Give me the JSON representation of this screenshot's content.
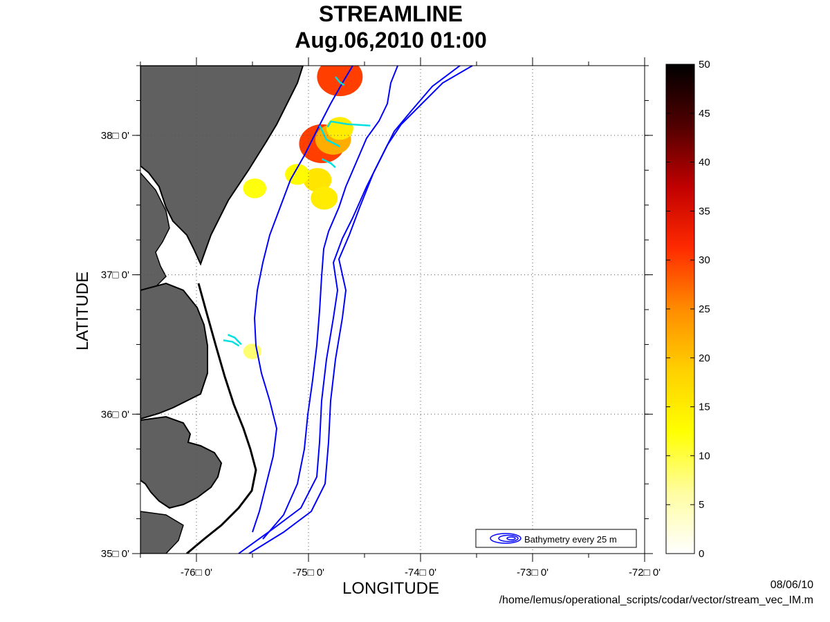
{
  "chart_data": {
    "type": "heatmap",
    "title": "STREAMLINE",
    "subtitle": "Aug.06,2010 01:00",
    "xlabel": "LONGITUDE",
    "ylabel": "LATITUDE",
    "xlim": [
      -76.5,
      -72.0
    ],
    "ylim": [
      35.0,
      38.5
    ],
    "grid": true,
    "x_ticks": [
      {
        "value": -76,
        "label": "-76□ 0'"
      },
      {
        "value": -75,
        "label": "-75□ 0'"
      },
      {
        "value": -74,
        "label": "-74□ 0'"
      },
      {
        "value": -73,
        "label": "-73□ 0'"
      },
      {
        "value": -72,
        "label": "-72□ 0'"
      }
    ],
    "y_ticks": [
      {
        "value": 35,
        "label": "35□ 0'"
      },
      {
        "value": 36,
        "label": "36□ 0'"
      },
      {
        "value": 37,
        "label": "37□ 0'"
      },
      {
        "value": 38,
        "label": "38□ 0'"
      }
    ],
    "colorbar": {
      "min": 0,
      "max": 50,
      "ticks": [
        0,
        5,
        10,
        15,
        20,
        25,
        30,
        35,
        40,
        45,
        50
      ],
      "colormap": "hot-reversed",
      "stops": [
        "#ffffff",
        "#fffda0",
        "#ffff00",
        "#ffd000",
        "#ff8c00",
        "#ff2a00",
        "#c00000",
        "#500000",
        "#000000"
      ]
    },
    "legend": {
      "label": "Bathymetry every 25 m",
      "placement": "bottom-right",
      "color": "#0000ff"
    },
    "speed_patches": [
      {
        "lon": -74.72,
        "lat": 38.42,
        "speed": 30
      },
      {
        "lon": -74.88,
        "lat": 37.94,
        "speed": 30
      },
      {
        "lon": -74.78,
        "lat": 37.97,
        "speed": 22
      },
      {
        "lon": -74.72,
        "lat": 38.05,
        "speed": 15
      },
      {
        "lon": -74.92,
        "lat": 37.68,
        "speed": 16
      },
      {
        "lon": -74.86,
        "lat": 37.55,
        "speed": 15
      },
      {
        "lon": -75.1,
        "lat": 37.72,
        "speed": 13
      },
      {
        "lon": -75.5,
        "lat": 36.45,
        "speed": 8
      },
      {
        "lon": -75.48,
        "lat": 37.62,
        "speed": 12
      }
    ],
    "streamlines": [
      {
        "points": [
          [
            -74.83,
            38.06
          ],
          [
            -74.8,
            38.1
          ],
          [
            -74.65,
            38.08
          ],
          [
            -74.45,
            38.07
          ]
        ]
      },
      {
        "points": [
          [
            -74.9,
            38.07
          ],
          [
            -74.84,
            37.97
          ],
          [
            -74.72,
            37.92
          ]
        ]
      },
      {
        "points": [
          [
            -74.88,
            37.83
          ],
          [
            -74.8,
            37.8
          ],
          [
            -74.76,
            37.77
          ]
        ]
      },
      {
        "points": [
          [
            -74.76,
            38.42
          ],
          [
            -74.72,
            38.38
          ],
          [
            -74.68,
            38.36
          ]
        ]
      },
      {
        "points": [
          [
            -75.72,
            36.57
          ],
          [
            -75.66,
            36.55
          ],
          [
            -75.6,
            36.5
          ]
        ]
      },
      {
        "points": [
          [
            -75.76,
            36.53
          ],
          [
            -75.68,
            36.52
          ],
          [
            -75.62,
            36.49
          ]
        ]
      }
    ],
    "colors": {
      "land": "#606060",
      "coastline": "#000000",
      "bathymetry": "#0000ff",
      "streamline": "#00e0e0",
      "grid": "#555555"
    }
  },
  "footer": {
    "date": "08/06/10",
    "path": "/home/lemus/operational_scripts/codar/vector/stream_vec_IM.m"
  }
}
